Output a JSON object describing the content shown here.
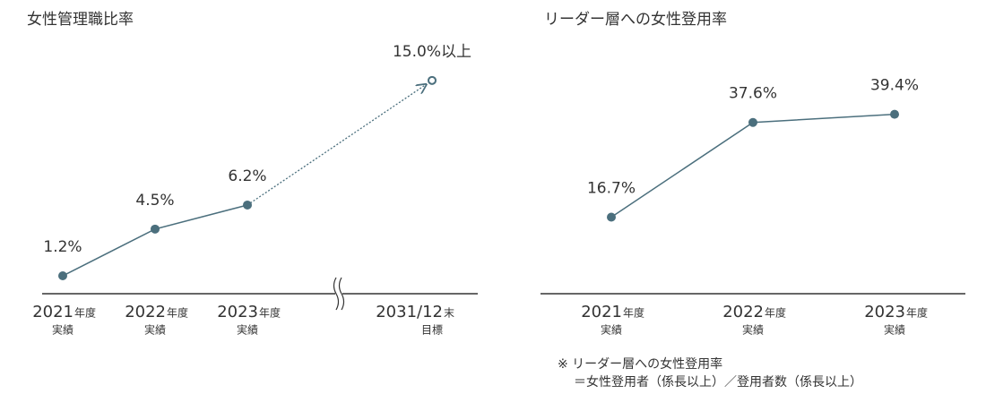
{
  "chart_data": [
    {
      "type": "line",
      "title": "女性管理職比率",
      "categories": [
        "2021",
        "2022",
        "2023",
        "2031/12"
      ],
      "category_suffixes": [
        "年度",
        "年度",
        "年度",
        "末"
      ],
      "category_notes": [
        "実績",
        "実績",
        "実績",
        "目標"
      ],
      "values": [
        1.2,
        4.5,
        6.2,
        15.0
      ],
      "value_labels": [
        "1.2%",
        "4.5%",
        "6.2%",
        "15.0%以上"
      ],
      "point_styles": [
        "filled",
        "filled",
        "filled",
        "hollow"
      ],
      "axis_break": true,
      "color": "#4b6f7d",
      "ylim": [
        0,
        16
      ]
    },
    {
      "type": "line",
      "title": "リーダー層への女性登用率",
      "categories": [
        "2021",
        "2022",
        "2023"
      ],
      "category_suffixes": [
        "年度",
        "年度",
        "年度"
      ],
      "category_notes": [
        "実績",
        "実績",
        "実績"
      ],
      "values": [
        16.7,
        37.6,
        39.4
      ],
      "value_labels": [
        "16.7%",
        "37.6%",
        "39.4%"
      ],
      "point_styles": [
        "filled",
        "filled",
        "filled"
      ],
      "axis_break": false,
      "color": "#4b6f7d",
      "ylim": [
        0,
        50
      ],
      "notes": [
        "※ リーダー層への女性登用率",
        "＝女性登用者（係長以上）／登用者数（係長以上）"
      ]
    }
  ]
}
